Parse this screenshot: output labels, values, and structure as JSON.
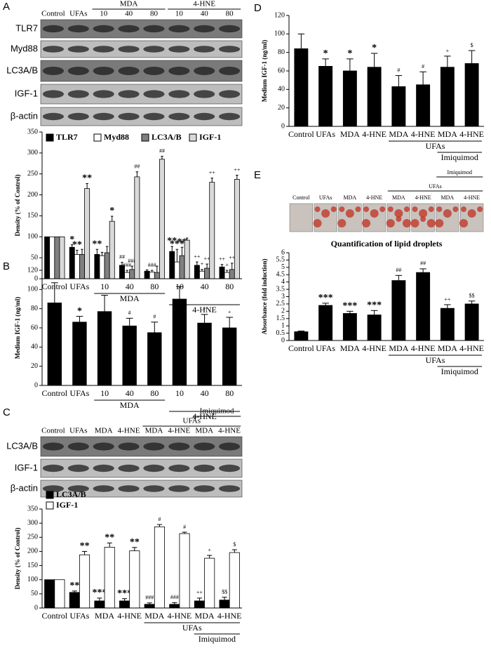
{
  "chart_data": [
    {
      "type": "bar",
      "ylabel": "Density (% of Control)",
      "categories": [
        "Control",
        "UFAs",
        "10",
        "40",
        "80",
        "10",
        "40",
        "80"
      ],
      "groups": [
        {
          "label": "MDA",
          "span": [
            2,
            4
          ]
        },
        {
          "label": "4-HNE",
          "span": [
            5,
            7
          ]
        }
      ],
      "series": [
        {
          "name": "TLR7",
          "color": "#000000",
          "values": [
            100,
            75,
            58,
            32,
            18,
            65,
            32,
            28
          ],
          "errors": [
            0,
            6,
            12,
            7,
            3,
            12,
            8,
            6
          ],
          "significance": [
            null,
            "*",
            "**",
            "##",
            null,
            "**",
            "++",
            "++"
          ]
        },
        {
          "name": "Myd88",
          "color": "#ffffff",
          "values": [
            100,
            58,
            55,
            15,
            16,
            40,
            18,
            15
          ],
          "errors": [
            0,
            10,
            8,
            5,
            4,
            30,
            4,
            5
          ],
          "significance": [
            null,
            "**",
            null,
            "###",
            "###",
            "***",
            "+",
            "+"
          ]
        },
        {
          "name": "LC3A/B",
          "color": "#808080",
          "values": [
            100,
            58,
            62,
            22,
            15,
            55,
            25,
            22
          ],
          "errors": [
            0,
            12,
            15,
            8,
            15,
            20,
            10,
            15
          ],
          "significance": [
            null,
            null,
            null,
            "###",
            null,
            "**",
            "++",
            "++"
          ]
        },
        {
          "name": "IGF-1",
          "color": "#d9d9d9",
          "values": [
            100,
            215,
            137,
            243,
            285,
            92,
            230,
            237
          ],
          "errors": [
            0,
            12,
            12,
            12,
            7,
            5,
            10,
            10
          ],
          "significance": [
            null,
            "**",
            "*",
            "##",
            "##",
            null,
            "++",
            "++"
          ]
        }
      ],
      "ylim": [
        0,
        350
      ],
      "yticks": [
        0,
        50,
        100,
        150,
        200,
        250,
        300,
        350
      ],
      "legend": "top-left"
    },
    {
      "type": "bar",
      "panel": "B",
      "ylabel": "Medium IGF-1 (ng/ml)",
      "categories": [
        "Control",
        "UFAs",
        "10",
        "40",
        "80",
        "10",
        "40",
        "80"
      ],
      "groups": [
        {
          "label": "MDA",
          "span": [
            2,
            4
          ]
        },
        {
          "label": "4-HNE",
          "span": [
            5,
            7
          ]
        }
      ],
      "series": [
        {
          "color": "#000000",
          "values": [
            86,
            66,
            77,
            62,
            55,
            90,
            65,
            60
          ],
          "errors": [
            21,
            6,
            17,
            8,
            11,
            13,
            9,
            11
          ],
          "significance": [
            null,
            "*",
            null,
            "#",
            "#",
            null,
            "+",
            "+"
          ]
        }
      ],
      "ylim": [
        0,
        120
      ],
      "yticks": [
        0,
        20,
        40,
        60,
        80,
        100,
        120
      ]
    },
    {
      "type": "bar",
      "ylabel": "Density (% of Control)",
      "categories": [
        "Control",
        "UFAs",
        "MDA",
        "4-HNE",
        "MDA",
        "4-HNE",
        "MDA",
        "4-HNE"
      ],
      "groups": [
        {
          "label": "UFAs",
          "span": [
            4,
            7
          ]
        },
        {
          "label": "Imiquimod",
          "span": [
            6,
            7
          ]
        }
      ],
      "series": [
        {
          "name": "LC3A/B",
          "color": "#000000",
          "values": [
            100,
            55,
            25,
            25,
            13,
            13,
            25,
            28
          ],
          "errors": [
            0,
            5,
            10,
            8,
            5,
            6,
            10,
            10
          ],
          "significance": [
            null,
            "**",
            "***",
            "***",
            "###",
            "###",
            "++",
            "$$"
          ]
        },
        {
          "name": "IGF-1",
          "color": "#ffffff",
          "values": [
            100,
            188,
            215,
            202,
            287,
            263,
            176,
            196
          ],
          "errors": [
            0,
            12,
            15,
            12,
            8,
            5,
            10,
            10
          ],
          "significance": [
            null,
            "**",
            "**",
            "**",
            "#",
            "#",
            "+",
            "$"
          ]
        }
      ],
      "ylim": [
        0,
        350
      ],
      "yticks": [
        0,
        50,
        100,
        150,
        200,
        250,
        300,
        350
      ],
      "legend": "top-left"
    },
    {
      "type": "bar",
      "panel": "D",
      "ylabel": "Medium IGF-1 (ng/ml)",
      "categories": [
        "Control",
        "UFAs",
        "MDA",
        "4-HNE",
        "MDA",
        "4-HNE",
        "MDA",
        "4-HNE"
      ],
      "groups": [
        {
          "label": "UFAs",
          "span": [
            4,
            7
          ]
        },
        {
          "label": "Imiquimod",
          "span": [
            6,
            7
          ]
        }
      ],
      "series": [
        {
          "color": "#000000",
          "values": [
            84,
            65,
            60,
            64,
            43,
            45,
            64,
            68
          ],
          "errors": [
            16,
            8,
            13,
            15,
            12,
            14,
            12,
            14
          ],
          "significance": [
            null,
            "*",
            "*",
            "*",
            "#",
            "#",
            "+",
            "$"
          ]
        }
      ],
      "ylim": [
        0,
        120
      ],
      "yticks": [
        0,
        20,
        40,
        60,
        80,
        100,
        120
      ]
    },
    {
      "type": "bar",
      "title": "Quantification of lipid droplets",
      "ylabel": "Absorbance (fold induction)",
      "categories": [
        "Control",
        "UFAs",
        "MDA",
        "4-HNE",
        "MDA",
        "4-HNE",
        "MDA",
        "4-HNE"
      ],
      "groups": [
        {
          "label": "UFAs",
          "span": [
            4,
            7
          ]
        },
        {
          "label": "Imiquimod",
          "span": [
            6,
            7
          ]
        }
      ],
      "series": [
        {
          "color": "#000000",
          "values": [
            0.6,
            2.4,
            1.85,
            1.75,
            4.1,
            4.65,
            2.2,
            2.5
          ],
          "errors": [
            0.05,
            0.15,
            0.15,
            0.3,
            0.35,
            0.25,
            0.25,
            0.2
          ],
          "significance": [
            null,
            "***",
            "***",
            "***",
            "##",
            "##",
            "++",
            "$$"
          ]
        }
      ],
      "ylim": [
        0,
        6
      ],
      "yticks": [
        0,
        0.5,
        1,
        1.5,
        2,
        2.5,
        3,
        3.5,
        4,
        4.5,
        5,
        5.5,
        6
      ]
    }
  ],
  "blots": [
    {
      "panel": "A",
      "lanes": [
        "Control",
        "UFAs",
        "10",
        "40",
        "80",
        "10",
        "40",
        "80"
      ],
      "groups": [
        {
          "label": "MDA",
          "span": [
            2,
            4
          ]
        },
        {
          "label": "4-HNE",
          "span": [
            5,
            7
          ]
        }
      ],
      "rows": [
        "TLR7",
        "Myd88",
        "LC3A/B",
        "IGF-1",
        "β-actin"
      ]
    },
    {
      "panel": "C",
      "lanes": [
        "Control",
        "UFAs",
        "MDA",
        "4-HNE",
        "MDA",
        "4-HNE",
        "MDA",
        "4-HNE"
      ],
      "groups": [
        {
          "label": "UFAs",
          "span": [
            4,
            7
          ]
        },
        {
          "label": "Imiquimod",
          "span": [
            6,
            7
          ]
        }
      ],
      "rows": [
        "LC3A/B",
        "IGF-1",
        "β-actin"
      ]
    }
  ],
  "micrographs": {
    "panel": "E",
    "lanes": [
      "Control",
      "UFAs",
      "MDA",
      "4-HNE",
      "MDA",
      "4-HNE",
      "MDA",
      "4-HNE"
    ],
    "groups": [
      {
        "label": "UFAs",
        "span": [
          4,
          7
        ]
      },
      {
        "label": "Imiquimod",
        "span": [
          6,
          7
        ]
      }
    ]
  }
}
